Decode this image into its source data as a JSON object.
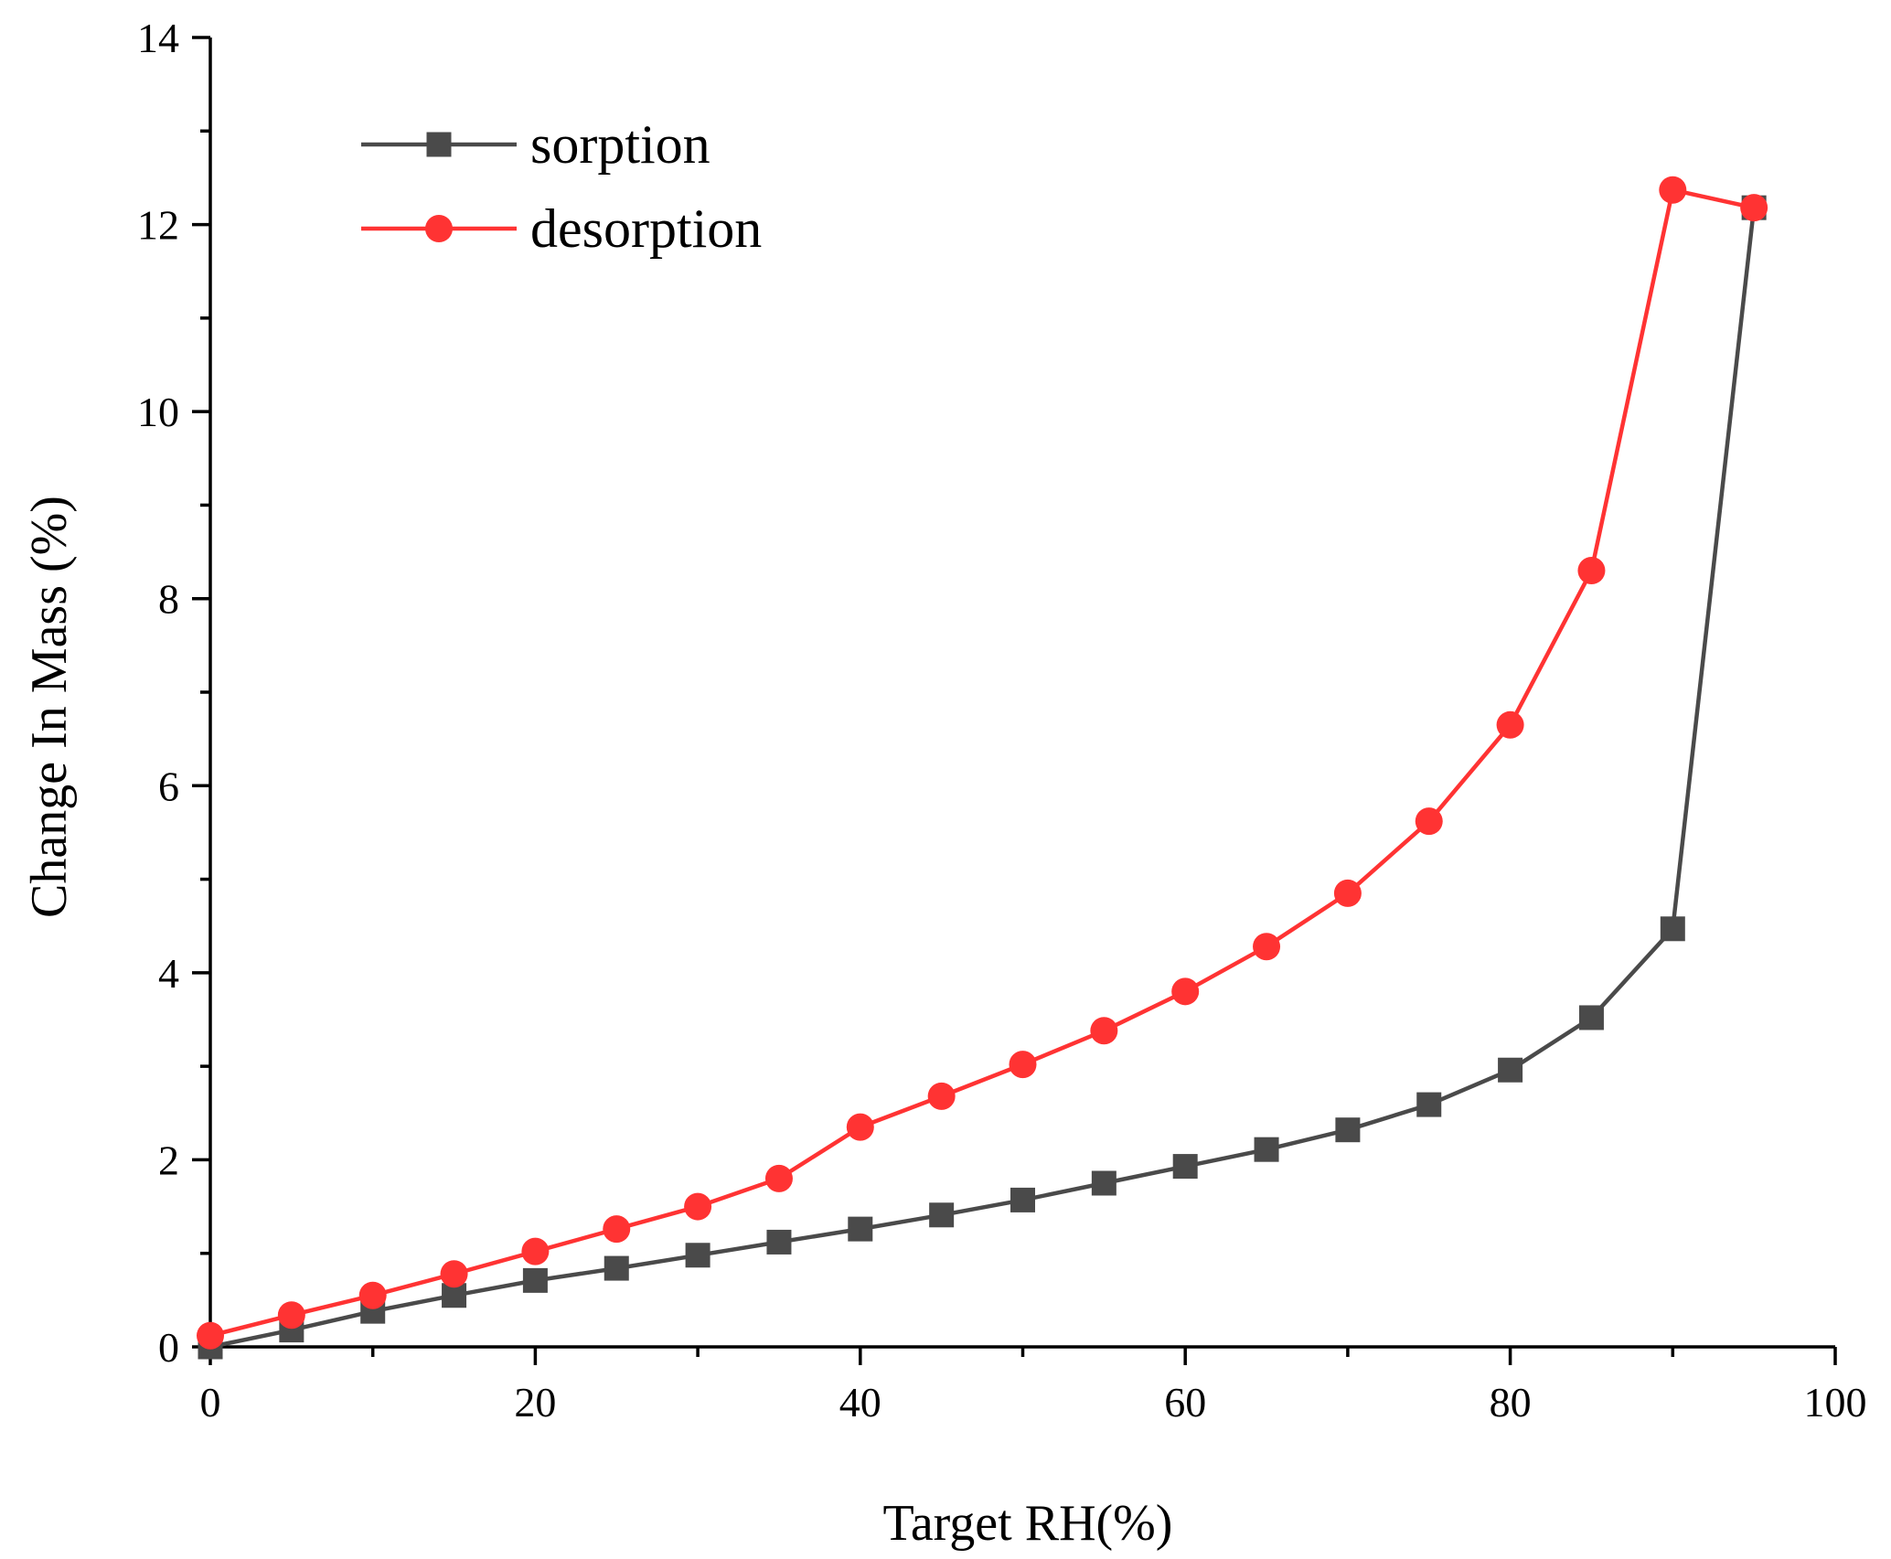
{
  "chart_data": {
    "type": "line",
    "title": "",
    "xlabel": "Target RH(%)",
    "ylabel": "Change In Mass (%)",
    "xlim": [
      0,
      100
    ],
    "ylim": [
      0,
      14
    ],
    "x_ticks": [
      0,
      20,
      40,
      60,
      80,
      100
    ],
    "y_ticks": [
      0,
      2,
      4,
      6,
      8,
      10,
      12,
      14
    ],
    "grid": false,
    "legend_position": "top-left",
    "series": [
      {
        "name": "sorption",
        "color": "#4a4a4a",
        "marker": "square",
        "x": [
          0,
          5,
          10,
          15,
          20,
          25,
          30,
          35,
          40,
          45,
          50,
          55,
          60,
          65,
          70,
          75,
          80,
          85,
          90,
          95
        ],
        "y": [
          0.0,
          0.18,
          0.38,
          0.55,
          0.71,
          0.84,
          0.98,
          1.12,
          1.26,
          1.41,
          1.57,
          1.75,
          1.93,
          2.11,
          2.32,
          2.59,
          2.96,
          3.52,
          4.47,
          12.18
        ]
      },
      {
        "name": "desorption",
        "color": "#ff3333",
        "marker": "circle",
        "x": [
          0,
          5,
          10,
          15,
          20,
          25,
          30,
          35,
          40,
          45,
          50,
          55,
          60,
          65,
          70,
          75,
          80,
          85,
          90,
          95
        ],
        "y": [
          0.12,
          0.34,
          0.55,
          0.78,
          1.02,
          1.26,
          1.5,
          1.8,
          2.35,
          2.68,
          3.02,
          3.38,
          3.8,
          4.28,
          4.85,
          5.62,
          6.65,
          8.3,
          12.37,
          12.18
        ]
      }
    ]
  }
}
